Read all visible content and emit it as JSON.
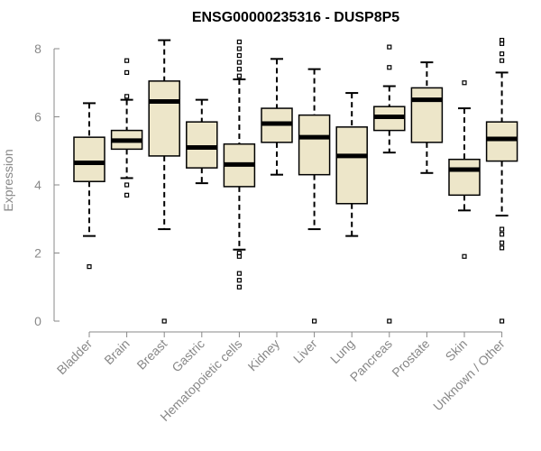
{
  "chart_data": {
    "type": "box",
    "title": "ENSG00000235316 - DUSP8P5",
    "xlabel": "",
    "ylabel": "Expression",
    "ylim": [
      0,
      8.4
    ],
    "yticks": [
      0,
      2,
      4,
      6,
      8
    ],
    "colors": {
      "box_fill": "#ede6c9",
      "box_stroke": "#000000",
      "axis": "#888888"
    },
    "categories": [
      "Bladder",
      "Brain",
      "Breast",
      "Gastric",
      "Hematopoietic cells",
      "Kidney",
      "Liver",
      "Lung",
      "Pancreas",
      "Prostate",
      "Skin",
      "Unknown / Other"
    ],
    "boxes": [
      {
        "category": "Bladder",
        "whisker_low": 2.5,
        "q1": 4.1,
        "median": 4.65,
        "q3": 5.4,
        "whisker_high": 6.4,
        "outliers": [
          1.6
        ]
      },
      {
        "category": "Brain",
        "whisker_low": 4.2,
        "q1": 5.05,
        "median": 5.3,
        "q3": 5.6,
        "whisker_high": 6.5,
        "outliers": [
          3.7,
          4.0,
          6.6,
          7.3,
          7.65
        ]
      },
      {
        "category": "Breast",
        "whisker_low": 2.7,
        "q1": 4.85,
        "median": 6.45,
        "q3": 7.05,
        "whisker_high": 8.25,
        "outliers": [
          0.0
        ]
      },
      {
        "category": "Gastric",
        "whisker_low": 4.05,
        "q1": 4.5,
        "median": 5.1,
        "q3": 5.85,
        "whisker_high": 6.5,
        "outliers": []
      },
      {
        "category": "Hematopoietic cells",
        "whisker_low": 2.1,
        "q1": 3.95,
        "median": 4.6,
        "q3": 5.2,
        "whisker_high": 7.1,
        "outliers": [
          1.0,
          1.2,
          1.4,
          1.9,
          2.0,
          7.2,
          7.4,
          7.6,
          7.8,
          8.0,
          8.2
        ]
      },
      {
        "category": "Kidney",
        "whisker_low": 4.3,
        "q1": 5.25,
        "median": 5.8,
        "q3": 6.25,
        "whisker_high": 7.7,
        "outliers": []
      },
      {
        "category": "Liver",
        "whisker_low": 2.7,
        "q1": 4.3,
        "median": 5.4,
        "q3": 6.05,
        "whisker_high": 7.4,
        "outliers": [
          0.0
        ]
      },
      {
        "category": "Lung",
        "whisker_low": 2.5,
        "q1": 3.45,
        "median": 4.85,
        "q3": 5.7,
        "whisker_high": 6.7,
        "outliers": []
      },
      {
        "category": "Pancreas",
        "whisker_low": 4.95,
        "q1": 5.6,
        "median": 6.0,
        "q3": 6.3,
        "whisker_high": 6.9,
        "outliers": [
          0.0,
          7.45,
          8.05
        ]
      },
      {
        "category": "Prostate",
        "whisker_low": 4.35,
        "q1": 5.25,
        "median": 6.5,
        "q3": 6.85,
        "whisker_high": 7.6,
        "outliers": []
      },
      {
        "category": "Skin",
        "whisker_low": 3.25,
        "q1": 3.7,
        "median": 4.45,
        "q3": 4.75,
        "whisker_high": 6.25,
        "outliers": [
          1.9,
          7.0
        ]
      },
      {
        "category": "Unknown / Other",
        "whisker_low": 3.1,
        "q1": 4.7,
        "median": 5.35,
        "q3": 5.85,
        "whisker_high": 7.3,
        "outliers": [
          0.0,
          2.15,
          2.3,
          2.55,
          2.7,
          7.65,
          7.85,
          8.15,
          8.25
        ]
      }
    ]
  }
}
